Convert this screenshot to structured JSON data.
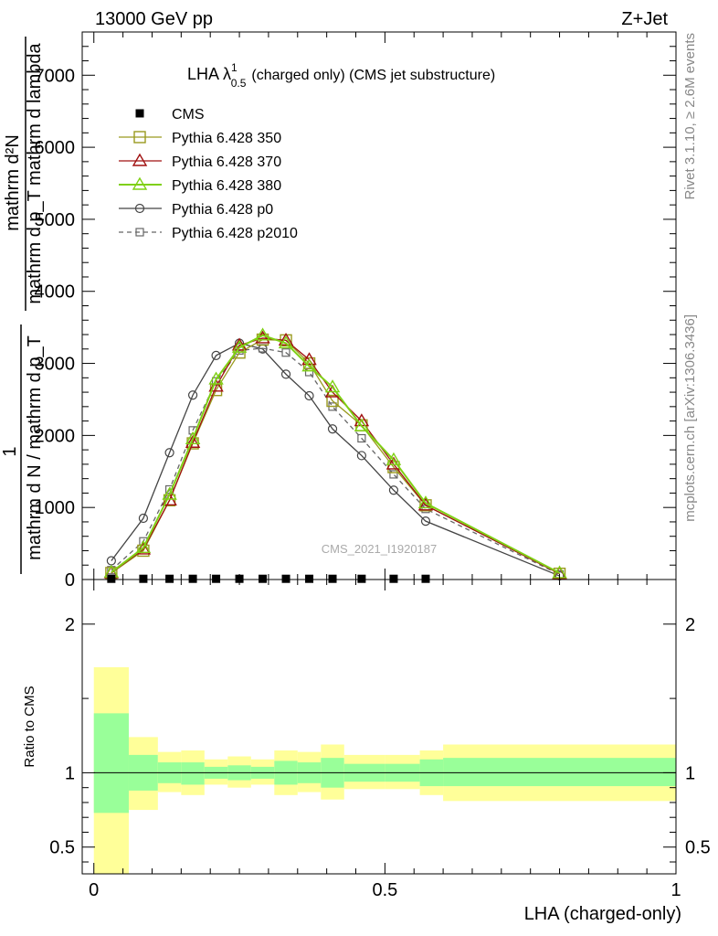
{
  "header": {
    "left": "13000 GeV pp",
    "right": "Z+Jet"
  },
  "side_labels": {
    "rivet": "Rivet 3.1.10, ≥ 2.6M events",
    "mcplots": "mcplots.cern.ch [arXiv:1306.3436]"
  },
  "watermark": "CMS_2021_I1920187",
  "main_title": {
    "prefix": "LHA λ",
    "sup": "1",
    "sub": "0.5",
    "suffix": "(charged only) (CMS jet substructure)"
  },
  "y_label_main": {
    "numerator": "mathrm d²N",
    "numerator_frac": "mathrm d p_T mathrm d lambda",
    "one": "1",
    "denominator": "mathrm d N / mathrm d p_T"
  },
  "y_label_ratio": "Ratio to CMS",
  "x_label": "LHA (charged-only)",
  "colors": {
    "p350": "#9a9a1e",
    "p370": "#a01010",
    "p380": "#7fd014",
    "p0": "#444444",
    "p2010": "#666666",
    "band_inner": "#99ff99",
    "band_outer": "#ffff99"
  },
  "chart_data": [
    {
      "type": "line",
      "panel": "main",
      "xlim": [
        -0.02,
        1.0
      ],
      "ylim": [
        0,
        7600
      ],
      "x_ticks": [
        "0",
        "0.5",
        "1"
      ],
      "y_ticks": [
        {
          "value": 0,
          "label": "0"
        },
        {
          "value": 1000,
          "label": "1000"
        },
        {
          "value": 2000,
          "label": "2000"
        },
        {
          "value": 3000,
          "label": "3000"
        },
        {
          "value": 4000,
          "label": "4000"
        },
        {
          "value": 5000,
          "label": "5000"
        },
        {
          "value": 6000,
          "label": "6000"
        },
        {
          "value": 7000,
          "label": "7000"
        }
      ],
      "legend": "top-left",
      "x": [
        0.03,
        0.085,
        0.13,
        0.17,
        0.21,
        0.25,
        0.29,
        0.33,
        0.37,
        0.41,
        0.46,
        0.515,
        0.57,
        0.8
      ],
      "series": [
        {
          "key": "cms",
          "name": "CMS",
          "marker": "filled-square",
          "dash": false,
          "x": [
            0.03,
            0.085,
            0.13,
            0.17,
            0.21,
            0.25,
            0.29,
            0.33,
            0.37,
            0.41,
            0.46,
            0.515,
            0.57
          ],
          "values": [
            10,
            10,
            10,
            10,
            10,
            10,
            10,
            10,
            10,
            10,
            10,
            10,
            10
          ]
        },
        {
          "key": "p350",
          "name": "Pythia 6.428 350",
          "marker": "open-square",
          "dash": false,
          "values": [
            90,
            400,
            1100,
            1890,
            2630,
            3150,
            3330,
            3320,
            3000,
            2480,
            2140,
            1560,
            1030,
            80
          ]
        },
        {
          "key": "p370",
          "name": "Pythia 6.428 370",
          "marker": "open-triangle",
          "dash": false,
          "values": [
            90,
            420,
            1100,
            1900,
            2680,
            3250,
            3350,
            3320,
            3050,
            2600,
            2200,
            1600,
            1030,
            80
          ]
        },
        {
          "key": "p380",
          "name": "Pythia 6.428 380",
          "marker": "open-triangle",
          "dash": false,
          "values": [
            100,
            440,
            1180,
            1950,
            2780,
            3220,
            3390,
            3280,
            2960,
            2670,
            2130,
            1660,
            1060,
            90
          ]
        },
        {
          "key": "p0",
          "name": "Pythia 6.428 p0",
          "marker": "open-circle",
          "dash": false,
          "values": [
            260,
            850,
            1760,
            2560,
            3110,
            3280,
            3200,
            2850,
            2550,
            2090,
            1720,
            1240,
            810,
            50
          ]
        },
        {
          "key": "p2010",
          "name": "Pythia 6.428 p2010",
          "marker": "open-square-small",
          "dash": true,
          "values": [
            130,
            530,
            1250,
            2070,
            2750,
            3180,
            3210,
            3150,
            2880,
            2400,
            1960,
            1460,
            980,
            70
          ]
        }
      ]
    },
    {
      "type": "area",
      "panel": "ratio",
      "xlim": [
        -0.02,
        1.0
      ],
      "ylim": [
        0.32,
        2.3
      ],
      "y_ticks": [
        {
          "value": 0.5,
          "label": "0.5"
        },
        {
          "value": 1,
          "label": "1"
        },
        {
          "value": 2,
          "label": "2"
        }
      ],
      "bin_edges": [
        0.0,
        0.06,
        0.11,
        0.15,
        0.19,
        0.23,
        0.27,
        0.31,
        0.35,
        0.39,
        0.43,
        0.5,
        0.56,
        0.6,
        1.0
      ],
      "inner_band": {
        "lo": [
          0.73,
          0.88,
          0.93,
          0.92,
          0.96,
          0.95,
          0.96,
          0.92,
          0.93,
          0.9,
          0.94,
          0.94,
          0.91,
          0.91
        ],
        "hi": [
          1.4,
          1.12,
          1.07,
          1.07,
          1.04,
          1.05,
          1.04,
          1.08,
          1.07,
          1.1,
          1.06,
          1.06,
          1.09,
          1.1
        ]
      },
      "outer_band": {
        "lo": [
          0.32,
          0.75,
          0.87,
          0.85,
          0.92,
          0.9,
          0.92,
          0.85,
          0.87,
          0.82,
          0.89,
          0.89,
          0.85,
          0.81
        ],
        "hi": [
          1.71,
          1.24,
          1.14,
          1.15,
          1.09,
          1.11,
          1.09,
          1.15,
          1.14,
          1.19,
          1.12,
          1.12,
          1.15,
          1.19
        ]
      },
      "reference_line": 1
    }
  ]
}
